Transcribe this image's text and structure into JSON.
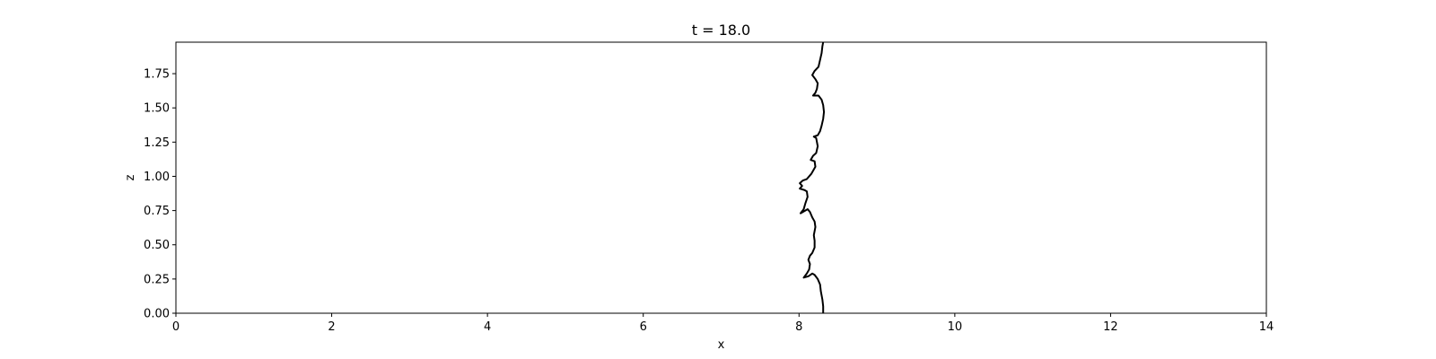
{
  "chart_data": {
    "type": "line",
    "title": "t = 18.0",
    "xlabel": "x",
    "ylabel": "z",
    "xlim": [
      0,
      14
    ],
    "ylim": [
      0,
      1.98
    ],
    "xticks": [
      0,
      2,
      4,
      6,
      8,
      10,
      12,
      14
    ],
    "xtick_labels": [
      "0",
      "2",
      "4",
      "6",
      "8",
      "10",
      "12",
      "14"
    ],
    "yticks": [
      0,
      0.25,
      0.5,
      0.75,
      1.0,
      1.25,
      1.5,
      1.75
    ],
    "ytick_labels": [
      "0.00",
      "0.25",
      "0.50",
      "0.75",
      "1.00",
      "1.25",
      "1.50",
      "1.75"
    ],
    "grid": false,
    "line_color": "#000000",
    "series": [
      {
        "points": [
          [
            8.31,
            0.0
          ],
          [
            8.31,
            0.05
          ],
          [
            8.3,
            0.1
          ],
          [
            8.28,
            0.16
          ],
          [
            8.27,
            0.21
          ],
          [
            8.24,
            0.25
          ],
          [
            8.2,
            0.28
          ],
          [
            8.17,
            0.29
          ],
          [
            8.12,
            0.27
          ],
          [
            8.06,
            0.26
          ],
          [
            8.1,
            0.29
          ],
          [
            8.13,
            0.32
          ],
          [
            8.14,
            0.36
          ],
          [
            8.12,
            0.39
          ],
          [
            8.14,
            0.42
          ],
          [
            8.17,
            0.44
          ],
          [
            8.2,
            0.48
          ],
          [
            8.2,
            0.53
          ],
          [
            8.19,
            0.57
          ],
          [
            8.21,
            0.63
          ],
          [
            8.2,
            0.67
          ],
          [
            8.17,
            0.7
          ],
          [
            8.14,
            0.74
          ],
          [
            8.11,
            0.76
          ],
          [
            8.05,
            0.74
          ],
          [
            8.02,
            0.73
          ],
          [
            8.06,
            0.76
          ],
          [
            8.08,
            0.8
          ],
          [
            8.11,
            0.85
          ],
          [
            8.1,
            0.89
          ],
          [
            8.07,
            0.9
          ],
          [
            8.01,
            0.91
          ],
          [
            8.04,
            0.93
          ],
          [
            8.01,
            0.95
          ],
          [
            8.05,
            0.97
          ],
          [
            8.1,
            0.98
          ],
          [
            8.16,
            1.02
          ],
          [
            8.21,
            1.07
          ],
          [
            8.2,
            1.11
          ],
          [
            8.15,
            1.12
          ],
          [
            8.18,
            1.15
          ],
          [
            8.22,
            1.17
          ],
          [
            8.24,
            1.22
          ],
          [
            8.22,
            1.28
          ],
          [
            8.19,
            1.29
          ],
          [
            8.24,
            1.3
          ],
          [
            8.27,
            1.33
          ],
          [
            8.29,
            1.37
          ],
          [
            8.31,
            1.42
          ],
          [
            8.32,
            1.47
          ],
          [
            8.31,
            1.52
          ],
          [
            8.29,
            1.56
          ],
          [
            8.25,
            1.59
          ],
          [
            8.18,
            1.59
          ],
          [
            8.21,
            1.61
          ],
          [
            8.23,
            1.64
          ],
          [
            8.24,
            1.68
          ],
          [
            8.21,
            1.71
          ],
          [
            8.17,
            1.74
          ],
          [
            8.2,
            1.77
          ],
          [
            8.25,
            1.8
          ],
          [
            8.27,
            1.85
          ],
          [
            8.29,
            1.9
          ],
          [
            8.3,
            1.95
          ],
          [
            8.31,
            1.98
          ]
        ]
      }
    ]
  }
}
